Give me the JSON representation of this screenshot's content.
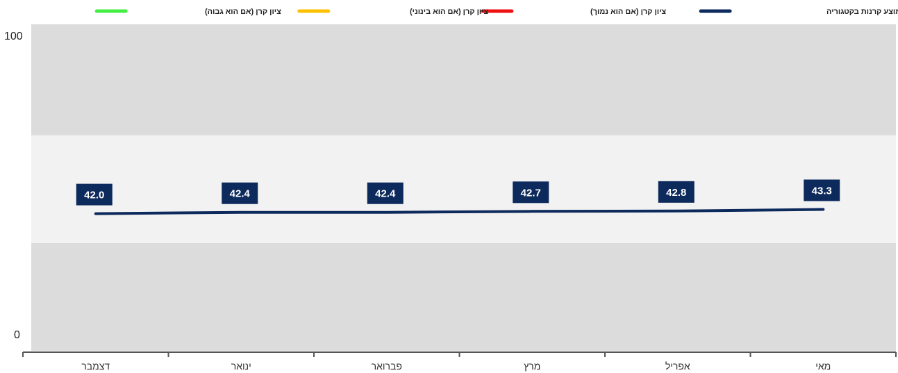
{
  "chart_data": {
    "type": "line",
    "direction": "rtl",
    "categories": [
      "מאי",
      "אפריל",
      "מרץ",
      "פברואר",
      "ינואר",
      "דצמבר"
    ],
    "series": [
      {
        "name": "ציון ממוצע קרנות בקטגוריה",
        "color": "#0d2a5c",
        "values": [
          43.3,
          42.8,
          42.7,
          42.4,
          42.4,
          42.0
        ],
        "labels": [
          "43.3",
          "42.8",
          "42.7",
          "42.4",
          "42.4",
          "42.0"
        ]
      }
    ],
    "legend": [
      {
        "label": "ציון ממוצע קרנות בקטגוריה",
        "color": "#0d2a5c"
      },
      {
        "label": "ציון קרן (אם הוא נמוך)",
        "color": "#ee1111"
      },
      {
        "label": "ציון קרן (אם הוא בינוני)",
        "color": "#ffc000"
      },
      {
        "label": "ציון קרן (אם הוא גבוה)",
        "color": "#44ee44"
      }
    ],
    "legend_position": "top",
    "ylim": [
      0,
      100
    ],
    "yticks": [
      "100",
      "0"
    ],
    "bands": [
      {
        "from": 0,
        "to": 33,
        "color": "#dcdcdc"
      },
      {
        "from": 33,
        "to": 66,
        "color": "#f2f2f2"
      },
      {
        "from": 66,
        "to": 100,
        "color": "#dcdcdc"
      }
    ],
    "label_box_color": "#0d2a5c"
  }
}
